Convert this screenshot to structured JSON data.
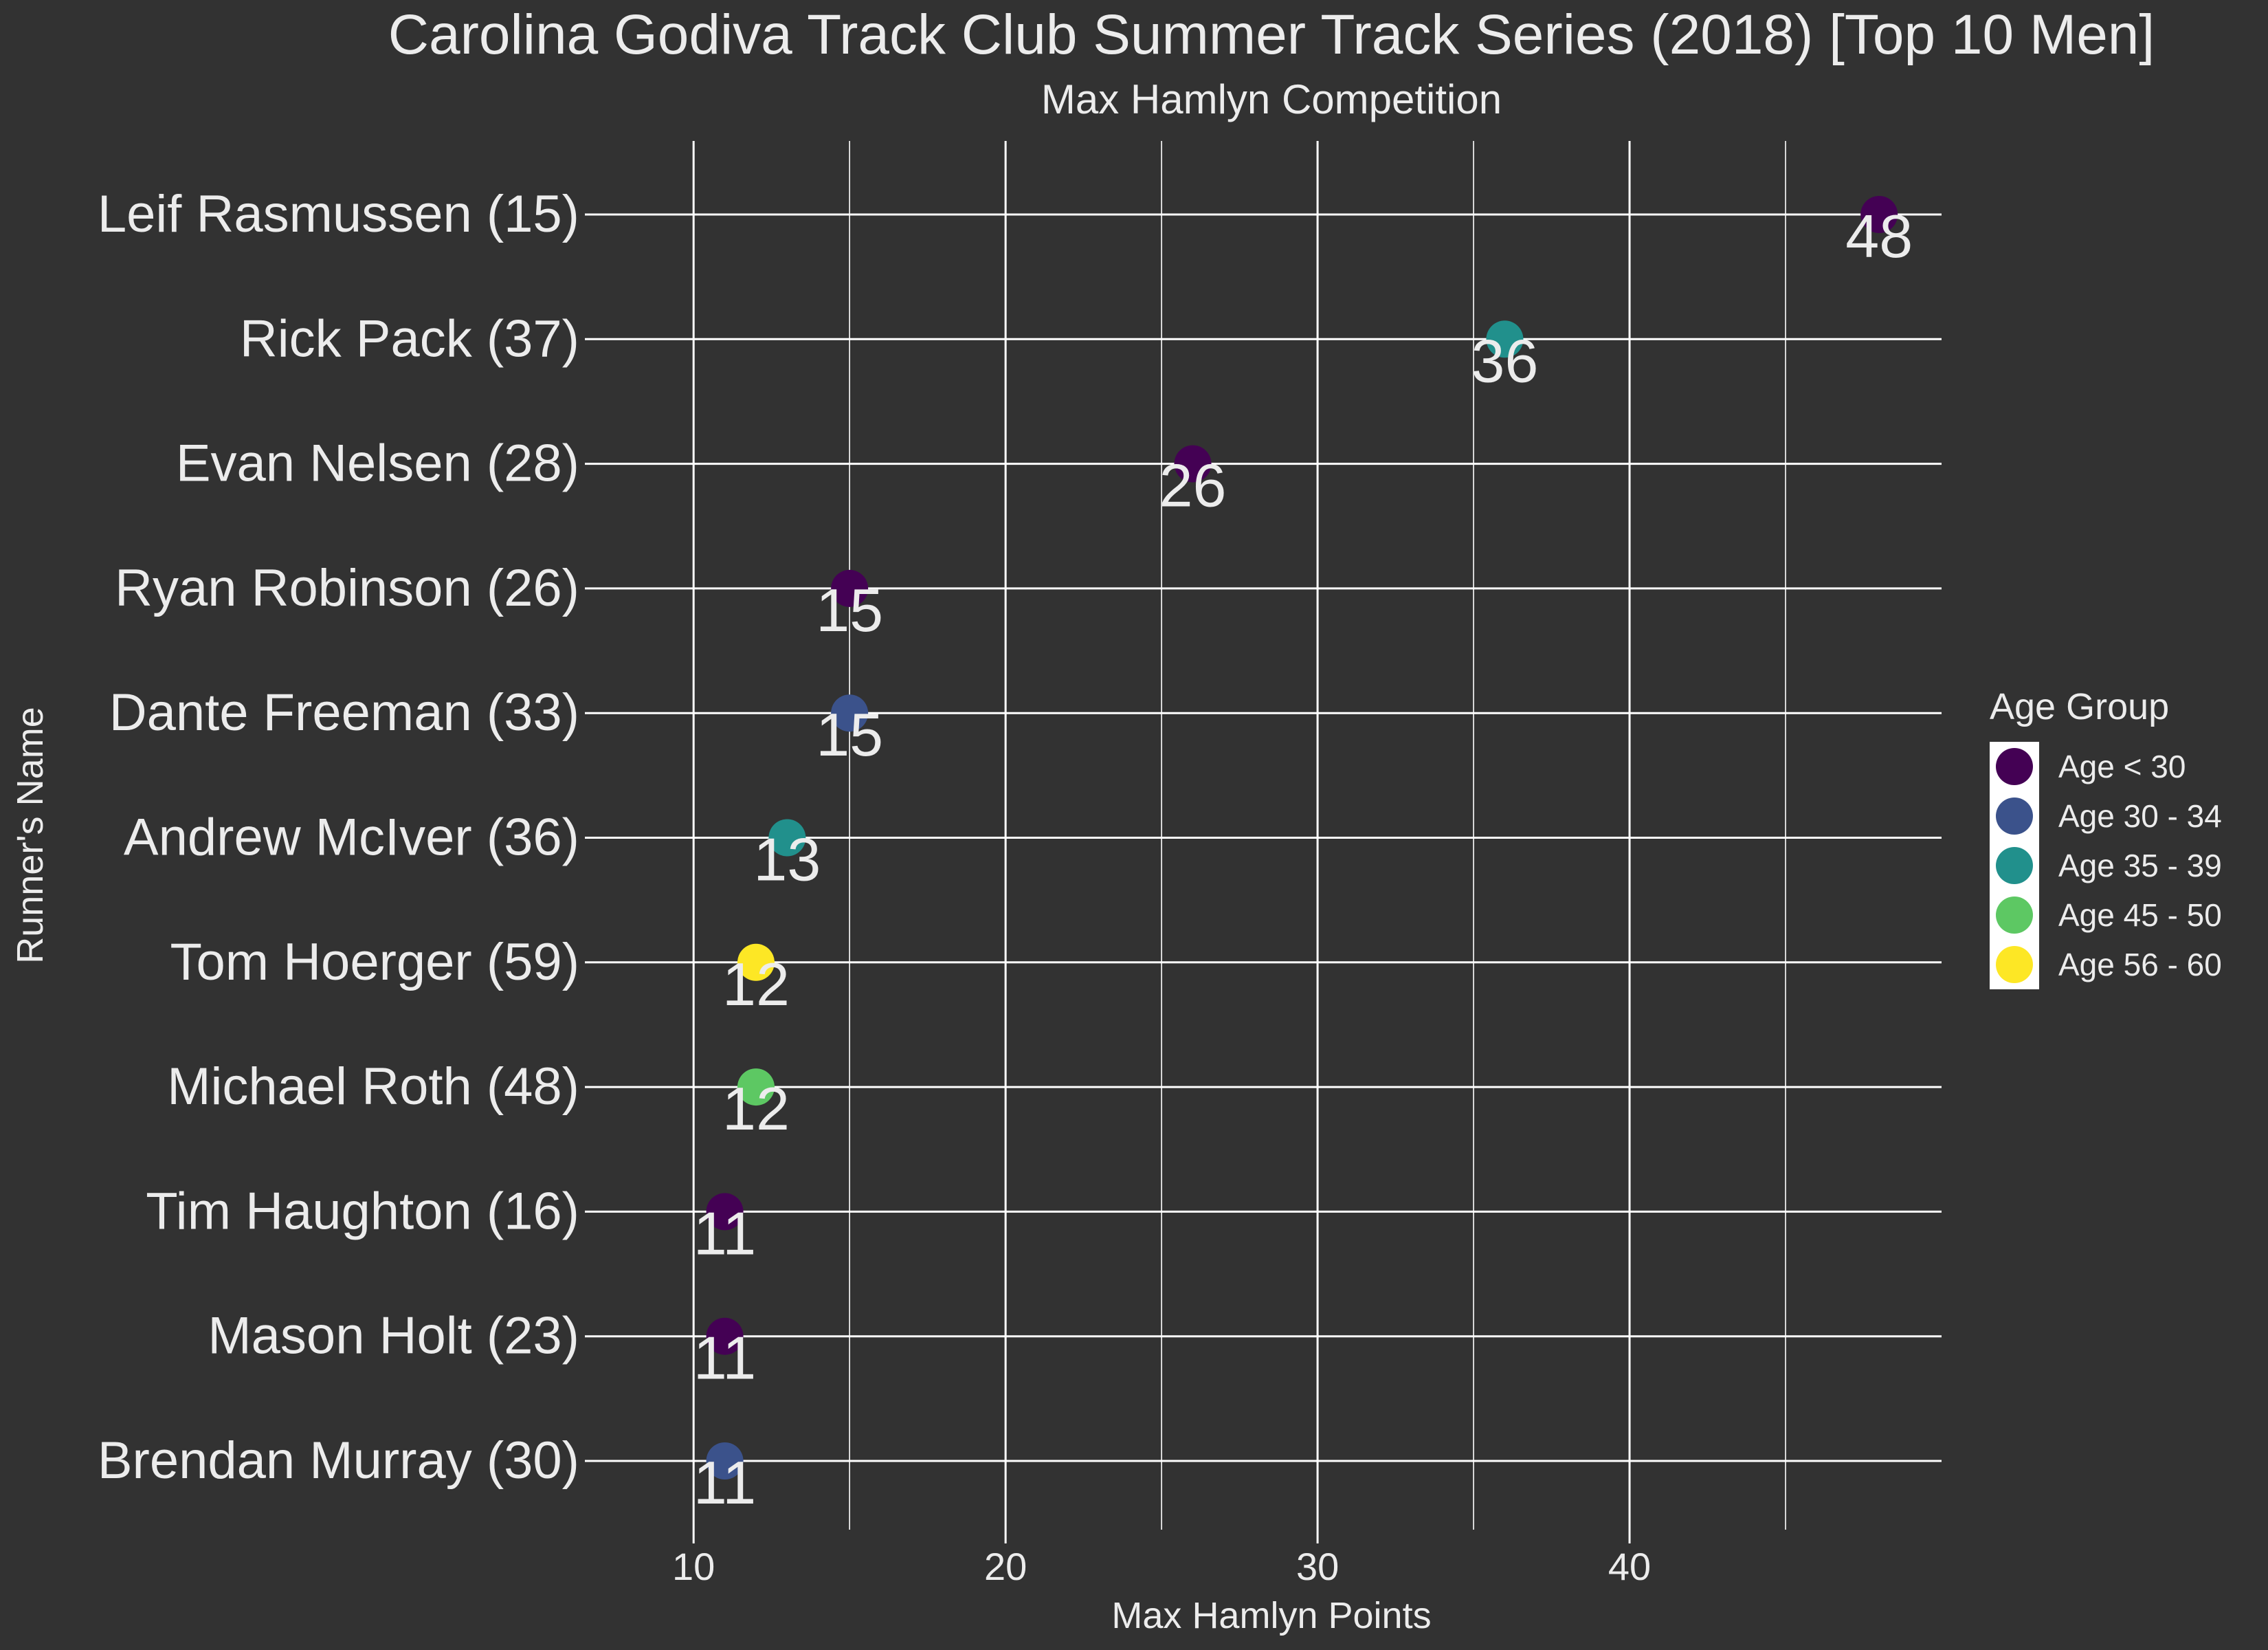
{
  "chart_data": {
    "type": "scatter",
    "title": "Carolina Godiva Track Club Summer Track Series (2018) [Top 10 Men]",
    "subtitle": "Max Hamlyn Competition",
    "xlabel": "Max Hamlyn Points",
    "ylabel": "Runner's Name",
    "xlim": [
      7.0,
      50.0
    ],
    "x_ticks": [
      10,
      20,
      30,
      40
    ],
    "x_minor_ticks": [
      15,
      25,
      35,
      45
    ],
    "grid": true,
    "legend": {
      "title": "Age Group",
      "placement": "right",
      "entries": [
        {
          "label": "Age < 30",
          "color": "#440154"
        },
        {
          "label": "Age 30 - 34",
          "color": "#3B528B"
        },
        {
          "label": "Age 35 - 39",
          "color": "#21908C"
        },
        {
          "label": "Age 45 - 50",
          "color": "#5DC863"
        },
        {
          "label": "Age 56 - 60",
          "color": "#FDE725"
        }
      ]
    },
    "points": [
      {
        "runner": "Leif Rasmussen (15)",
        "points": 48,
        "group": 0,
        "label": "48"
      },
      {
        "runner": "Rick Pack (37)",
        "points": 36,
        "group": 2,
        "label": "36"
      },
      {
        "runner": "Evan Nelsen (28)",
        "points": 26,
        "group": 0,
        "label": "26"
      },
      {
        "runner": "Ryan Robinson (26)",
        "points": 15,
        "group": 0,
        "label": "15"
      },
      {
        "runner": "Dante Freeman (33)",
        "points": 15,
        "group": 1,
        "label": "15"
      },
      {
        "runner": "Andrew McIver (36)",
        "points": 13,
        "group": 2,
        "label": "13"
      },
      {
        "runner": "Tom Hoerger (59)",
        "points": 12,
        "group": 4,
        "label": "12"
      },
      {
        "runner": "Michael Roth (48)",
        "points": 12,
        "group": 3,
        "label": "12"
      },
      {
        "runner": "Tim Haughton (16)",
        "points": 11,
        "group": 0,
        "label": "11"
      },
      {
        "runner": "Mason Holt (23)",
        "points": 11,
        "group": 0,
        "label": "11"
      },
      {
        "runner": "Brendan Murray (30)",
        "points": 11,
        "group": 1,
        "label": "11"
      }
    ]
  },
  "colors": {
    "background": "#323232",
    "grid": "#ffffff",
    "text": "#ececec"
  }
}
